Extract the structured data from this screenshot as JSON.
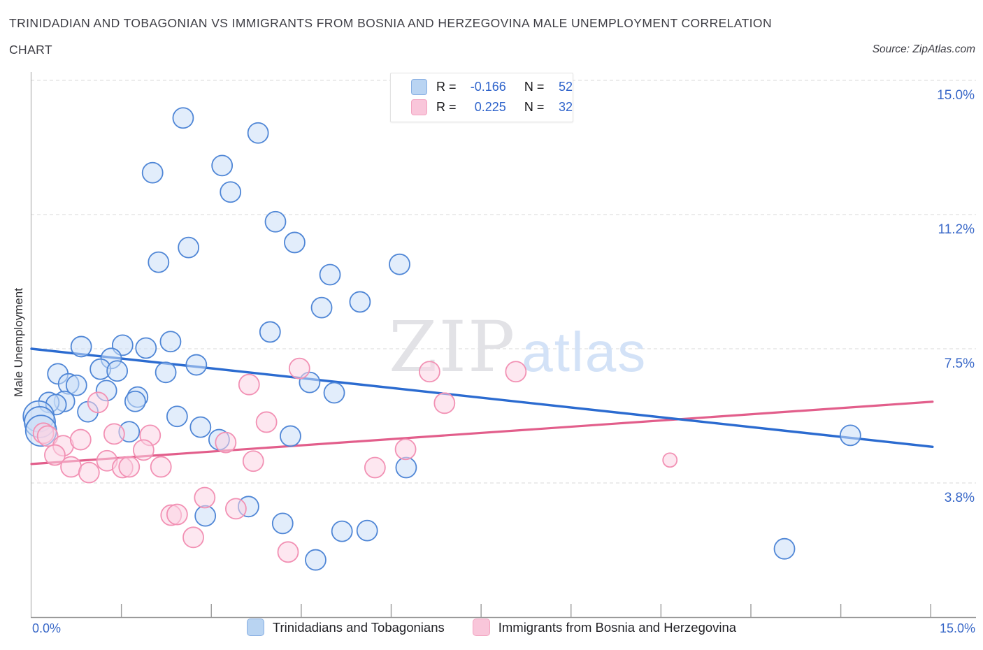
{
  "header": {
    "title_line1": "TRINIDADIAN AND TOBAGONIAN VS IMMIGRANTS FROM BOSNIA AND HERZEGOVINA MALE UNEMPLOYMENT CORRELATION",
    "title_line2": "CHART",
    "source": "Source: ZipAtlas.com"
  },
  "correlation_legend": {
    "rows": [
      {
        "series": "Trinidadians and Tobagonians",
        "r_label": "R =",
        "r_value": "-0.166",
        "n_label": "N =",
        "n_value": "52"
      },
      {
        "series": "Immigrants from Bosnia and Herzegovina",
        "r_label": "R =",
        "r_value": "0.225",
        "n_label": "N =",
        "n_value": "32"
      }
    ]
  },
  "watermark": {
    "part1": "ZIP",
    "part2": "atlas"
  },
  "bottom_legend": [
    {
      "label": "Trinidadians and Tobagonians"
    },
    {
      "label": "Immigrants from Bosnia and Herzegovina"
    }
  ],
  "colors": {
    "blue_stroke": "#4f86d6",
    "blue_fill": "#cadef7",
    "blue_trend": "#2b6bd0",
    "pink_stroke": "#f291b4",
    "pink_fill": "#fbd4e3",
    "pink_trend": "#e25e8b",
    "axis_label": "#3968c8",
    "grid": "#d9d9d9",
    "axis_line": "#9b9b9b",
    "legend_blue_fill": "#b9d4f2",
    "legend_blue_border": "#86aee2",
    "legend_pink_fill": "#f9c6da",
    "legend_pink_border": "#f2a3c0",
    "watermark_zip": "#e2e2e6",
    "watermark_atlas": "#d3e2f7"
  },
  "chart_data": {
    "type": "scatter",
    "title": "Trinidadian and Tobagonian vs Immigrants from Bosnia and Herzegovina Male Unemployment Correlation",
    "xlabel": "",
    "ylabel": "Male Unemployment",
    "x_axis": {
      "min": 0,
      "max": 15.75,
      "tick_interval": 1.5,
      "min_label": "0.0%",
      "max_label": "15.0%",
      "unit": "%"
    },
    "y_axis": {
      "min": 0,
      "max": 15.6,
      "gridline_values": [
        15.0,
        11.25,
        7.5,
        3.75
      ],
      "tick_labels": [
        "15.0%",
        "11.2%",
        "7.5%",
        "3.8%"
      ],
      "unit": "%",
      "grid": "dashed"
    },
    "series": [
      {
        "name": "Trinidadians and Tobagonians",
        "R": -0.166,
        "N": 52,
        "points": [
          [
            2.53,
            13.95
          ],
          [
            3.78,
            13.53
          ],
          [
            3.18,
            12.62
          ],
          [
            2.02,
            12.42
          ],
          [
            3.32,
            11.88
          ],
          [
            4.07,
            11.05
          ],
          [
            4.39,
            10.47
          ],
          [
            2.62,
            10.33
          ],
          [
            2.12,
            9.92
          ],
          [
            4.98,
            9.57
          ],
          [
            6.14,
            9.86
          ],
          [
            5.48,
            8.81
          ],
          [
            4.84,
            8.65
          ],
          [
            3.98,
            7.97
          ],
          [
            0.83,
            7.56
          ],
          [
            1.52,
            7.6
          ],
          [
            1.91,
            7.52
          ],
          [
            2.32,
            7.7
          ],
          [
            1.33,
            7.23
          ],
          [
            1.15,
            6.93
          ],
          [
            1.43,
            6.88
          ],
          [
            2.24,
            6.84
          ],
          [
            2.75,
            7.05
          ],
          [
            0.44,
            6.8
          ],
          [
            0.62,
            6.52
          ],
          [
            0.75,
            6.48
          ],
          [
            0.55,
            6.03
          ],
          [
            0.29,
            6.0
          ],
          [
            0.41,
            5.94
          ],
          [
            1.25,
            6.33
          ],
          [
            0.94,
            5.74
          ],
          [
            1.77,
            6.15
          ],
          [
            1.73,
            6.03
          ],
          [
            0.12,
            5.61,
            "lg"
          ],
          [
            0.14,
            5.45,
            "lg"
          ],
          [
            0.16,
            5.21,
            "lg"
          ],
          [
            2.43,
            5.61
          ],
          [
            2.82,
            5.31
          ],
          [
            1.63,
            5.18
          ],
          [
            3.13,
            4.96
          ],
          [
            4.32,
            5.06
          ],
          [
            4.64,
            6.56
          ],
          [
            5.05,
            6.27
          ],
          [
            6.25,
            4.18
          ],
          [
            3.62,
            3.09
          ],
          [
            2.9,
            2.83
          ],
          [
            4.19,
            2.62
          ],
          [
            5.18,
            2.4
          ],
          [
            5.6,
            2.42
          ],
          [
            4.74,
            1.6
          ],
          [
            13.66,
            5.08
          ],
          [
            12.56,
            1.91
          ]
        ],
        "trend_line": {
          "from": [
            0,
            7.5
          ],
          "to": [
            15.03,
            4.76
          ]
        }
      },
      {
        "name": "Immigrants from Bosnia and Herzegovina",
        "R": 0.225,
        "N": 32,
        "points": [
          [
            1.11,
            6.0
          ],
          [
            3.63,
            6.5
          ],
          [
            4.47,
            6.95
          ],
          [
            6.64,
            6.86
          ],
          [
            8.08,
            6.86
          ],
          [
            6.89,
            5.98
          ],
          [
            6.24,
            4.69
          ],
          [
            5.73,
            4.18
          ],
          [
            3.92,
            5.45
          ],
          [
            0.2,
            5.14
          ],
          [
            0.27,
            5.06
          ],
          [
            1.38,
            5.12
          ],
          [
            1.98,
            5.08
          ],
          [
            0.53,
            4.79
          ],
          [
            0.82,
            4.96
          ],
          [
            0.39,
            4.53
          ],
          [
            0.66,
            4.2
          ],
          [
            0.96,
            4.04
          ],
          [
            1.26,
            4.37
          ],
          [
            1.52,
            4.18
          ],
          [
            1.63,
            4.2
          ],
          [
            1.87,
            4.67
          ],
          [
            2.16,
            4.2
          ],
          [
            3.24,
            4.88
          ],
          [
            3.7,
            4.36
          ],
          [
            3.41,
            3.03
          ],
          [
            2.89,
            3.34
          ],
          [
            2.33,
            2.85
          ],
          [
            2.43,
            2.87
          ],
          [
            2.7,
            2.23
          ],
          [
            4.28,
            1.82
          ],
          [
            10.65,
            4.39,
            "sm"
          ]
        ],
        "trend_line": {
          "from": [
            0,
            4.28
          ],
          "to": [
            15.03,
            6.02
          ]
        }
      }
    ],
    "legend_position": "bottom"
  }
}
